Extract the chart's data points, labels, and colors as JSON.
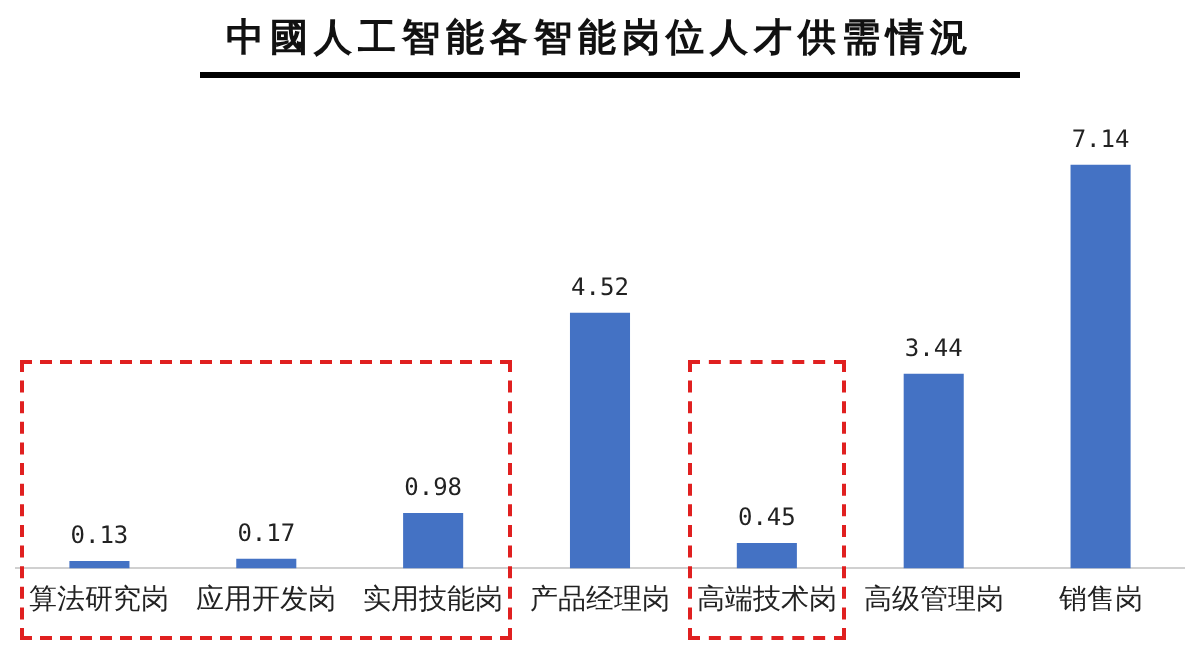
{
  "chart_data": {
    "type": "bar",
    "title": "中國人工智能各智能岗位人才供需情況",
    "categories": [
      "算法研究岗",
      "应用开发岗",
      "实用技能岗",
      "产品经理岗",
      "高端技术岗",
      "高级管理岗",
      "销售岗"
    ],
    "values": [
      0.13,
      0.17,
      0.98,
      4.52,
      0.45,
      3.44,
      7.14
    ],
    "color": "#4472c4",
    "data_labels": true,
    "grid": false,
    "legend": false
  }
}
